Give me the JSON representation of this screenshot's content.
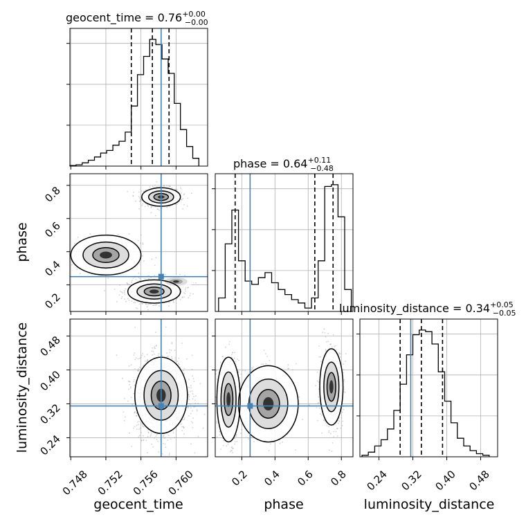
{
  "chart_data": {
    "type": "corner",
    "parameters": [
      "geocent_time",
      "phase",
      "luminosity_distance"
    ],
    "truths": {
      "geocent_time": 0.7583,
      "phase": 0.25,
      "luminosity_distance": 0.315
    },
    "titles": [
      {
        "param": "geocent_time",
        "prefix": "geocent_time = 0.76",
        "plus": "+0.00",
        "minus": "−0.00"
      },
      {
        "param": "phase",
        "prefix": "phase = 0.64",
        "plus": "+0.11",
        "minus": "−0.48"
      },
      {
        "param": "luminosity_distance",
        "prefix": "luminosity_distance = 0.34",
        "plus": "+0.05",
        "minus": "−0.05"
      }
    ],
    "axis_labels": {
      "geocent_time": "geocent_time",
      "phase": "phase",
      "luminosity_distance": "luminosity_distance"
    },
    "ticks": {
      "geocent_time": [
        "0.748",
        "0.752",
        "0.756",
        "0.760"
      ],
      "phase": [
        "0.2",
        "0.4",
        "0.6",
        "0.8"
      ],
      "phase_y": [
        "0.2",
        "0.4",
        "0.6",
        "0.8"
      ],
      "luminosity_distance": [
        "0.24",
        "0.32",
        "0.40",
        "0.48"
      ]
    },
    "tick_values": {
      "geocent_time": [
        0.748,
        0.752,
        0.756,
        0.76
      ],
      "phase": [
        0.2,
        0.4,
        0.6,
        0.8
      ],
      "luminosity_distance": [
        0.24,
        0.32,
        0.4,
        0.48
      ]
    },
    "ranges": {
      "geocent_time": [
        0.7479,
        0.7636
      ],
      "phase": [
        0.04,
        0.87
      ],
      "luminosity_distance": [
        0.195,
        0.52
      ]
    },
    "quantiles": {
      "geocent_time": [
        0.7549,
        0.7573,
        0.7592
      ],
      "phase": [
        0.16,
        0.64,
        0.75
      ],
      "luminosity_distance": [
        0.29,
        0.34,
        0.39
      ]
    },
    "histograms": {
      "geocent_time": {
        "edges": [
          0.7479,
          0.7486,
          0.7493,
          0.75,
          0.7507,
          0.7514,
          0.7521,
          0.7528,
          0.7535,
          0.7542,
          0.7549,
          0.7556,
          0.7563,
          0.757,
          0.7577,
          0.7584,
          0.7591,
          0.7598,
          0.7605,
          0.7612,
          0.7619,
          0.7626
        ],
        "counts": [
          1,
          2,
          5,
          9,
          14,
          20,
          24,
          32,
          38,
          52,
          92,
          140,
          168,
          194,
          186,
          164,
          142,
          96,
          56,
          30,
          12
        ]
      },
      "phase": {
        "edges": [
          0.06,
          0.1,
          0.14,
          0.18,
          0.22,
          0.26,
          0.3,
          0.34,
          0.38,
          0.42,
          0.46,
          0.5,
          0.54,
          0.58,
          0.62,
          0.66,
          0.7,
          0.74,
          0.78,
          0.82,
          0.86
        ],
        "counts": [
          16,
          80,
          120,
          60,
          36,
          32,
          40,
          46,
          34,
          26,
          20,
          14,
          10,
          4,
          16,
          60,
          148,
          150,
          112,
          26
        ]
      },
      "luminosity_distance": {
        "edges": [
          0.2,
          0.215,
          0.23,
          0.245,
          0.26,
          0.275,
          0.29,
          0.305,
          0.32,
          0.335,
          0.35,
          0.365,
          0.38,
          0.395,
          0.41,
          0.425,
          0.44,
          0.455,
          0.47,
          0.485,
          0.5
        ],
        "counts": [
          2,
          6,
          14,
          22,
          36,
          60,
          94,
          132,
          158,
          164,
          162,
          146,
          110,
          72,
          44,
          24,
          14,
          8,
          4,
          2
        ]
      }
    },
    "grid": true,
    "contour_levels": 3
  }
}
